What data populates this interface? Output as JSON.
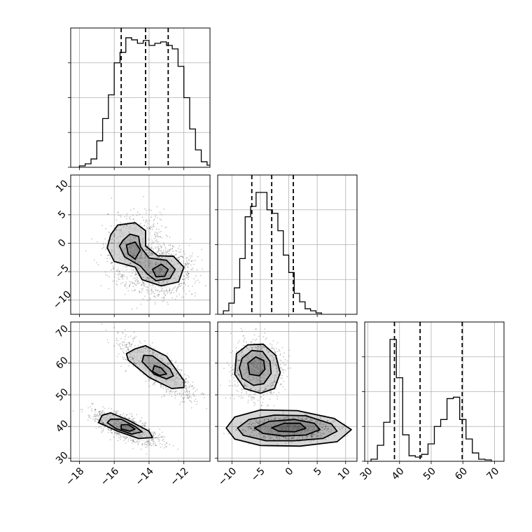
{
  "chart_data": {
    "type": "corner",
    "grid": true,
    "parameters": [
      {
        "xlim": [
          -18.5,
          -10.5
        ],
        "ticks": [
          -18,
          -16,
          -14,
          -12
        ],
        "tick_labels": [
          "−18",
          "−16",
          "−14",
          "−12"
        ],
        "quantiles": [
          -15.6,
          -14.2,
          -12.9
        ]
      },
      {
        "xlim": [
          -12.5,
          12
        ],
        "ticks": [
          -10,
          -5,
          0,
          5,
          10
        ],
        "tick_labels": [
          "−10",
          "−5",
          "0",
          "5",
          "10"
        ],
        "quantiles": [
          -6.5,
          -3.0,
          0.8
        ]
      },
      {
        "xlim": [
          29,
          73
        ],
        "ticks": [
          30,
          40,
          50,
          60,
          70
        ],
        "tick_labels": [
          "30",
          "40",
          "50",
          "60",
          "70"
        ],
        "quantiles": [
          38.4,
          46.5,
          59.8
        ]
      }
    ],
    "histograms": [
      {
        "param": 0,
        "bin_start": -18.0,
        "bin_width": 0.3333,
        "counts": [
          2,
          5,
          12,
          38,
          70,
          104,
          150,
          165,
          186,
          183,
          178,
          182,
          175,
          178,
          180,
          175,
          170,
          145,
          100,
          55,
          25,
          8,
          3,
          1
        ],
        "ylim": [
          0,
          200
        ]
      },
      {
        "param": 1,
        "bin_start": -11.5,
        "bin_width": 0.9583,
        "counts": [
          5,
          16,
          38,
          80,
          140,
          155,
          175,
          175,
          150,
          145,
          120,
          85,
          60,
          30,
          18,
          8,
          5,
          2
        ],
        "ylim": [
          0,
          200
        ]
      },
      {
        "param": 2,
        "bin_start": 31,
        "bin_width": 2,
        "counts": [
          3,
          23,
          56,
          175,
          120,
          38,
          8,
          6,
          10,
          25,
          50,
          60,
          90,
          92,
          60,
          32,
          12,
          3,
          2
        ],
        "ylim": [
          0,
          200
        ]
      }
    ],
    "scatter_panels": [
      {
        "x_param": 0,
        "y_param": 1,
        "clusters": [
          {
            "center": [
              -14.8,
              -1.5
            ],
            "spread": [
              0.8,
              3.0
            ],
            "weight": 0.5
          },
          {
            "center": [
              -13.3,
              -5.0
            ],
            "spread": [
              0.8,
              2.0
            ],
            "weight": 0.5
          }
        ],
        "contours": [
          [
            [
              -16.2,
              1.5
            ],
            [
              -15.8,
              3.2
            ],
            [
              -14.8,
              3.6
            ],
            [
              -14.2,
              2.2
            ],
            [
              -14.2,
              -0.5
            ],
            [
              -13.5,
              -2.2
            ],
            [
              -12.6,
              -2.3
            ],
            [
              -12.0,
              -4.2
            ],
            [
              -12.3,
              -6.8
            ],
            [
              -13.3,
              -7.5
            ],
            [
              -14.4,
              -6.4
            ],
            [
              -14.8,
              -4.2
            ],
            [
              -16.0,
              -3.2
            ],
            [
              -16.4,
              -0.8
            ]
          ],
          [
            [
              -15.5,
              0.5
            ],
            [
              -15.1,
              1.6
            ],
            [
              -14.6,
              1.2
            ],
            [
              -14.5,
              -0.6
            ],
            [
              -14.0,
              -2.6
            ],
            [
              -13.0,
              -3.0
            ],
            [
              -12.5,
              -4.6
            ],
            [
              -12.8,
              -6.2
            ],
            [
              -13.6,
              -6.6
            ],
            [
              -14.1,
              -5.4
            ],
            [
              -14.5,
              -4.0
            ],
            [
              -15.4,
              -2.4
            ],
            [
              -15.7,
              -0.5
            ]
          ],
          [
            [
              -15.3,
              -0.3
            ],
            [
              -14.8,
              0.2
            ],
            [
              -14.5,
              -1.2
            ],
            [
              -14.8,
              -2.8
            ],
            [
              -15.2,
              -1.9
            ]
          ],
          [
            [
              -13.8,
              -4.6
            ],
            [
              -13.3,
              -3.7
            ],
            [
              -12.9,
              -4.6
            ],
            [
              -13.1,
              -5.8
            ],
            [
              -13.6,
              -5.9
            ]
          ]
        ]
      },
      {
        "x_param": 0,
        "y_param": 2,
        "clusters": [
          {
            "center": [
              -13.5,
              58
            ],
            "spread": [
              1.0,
              4.5
            ],
            "corr": -0.85,
            "weight": 0.5
          },
          {
            "center": [
              -15.3,
              39.5
            ],
            "spread": [
              0.9,
              2.6
            ],
            "corr": -0.75,
            "weight": 0.5
          }
        ],
        "contours": [
          [
            [
              -14.8,
              64.5
            ],
            [
              -14.2,
              65.5
            ],
            [
              -13.0,
              62.2
            ],
            [
              -12.0,
              54.5
            ],
            [
              -12.0,
              52.3
            ],
            [
              -12.7,
              52.0
            ],
            [
              -14.0,
              55.5
            ],
            [
              -15.2,
              61.0
            ],
            [
              -15.3,
              63.0
            ]
          ],
          [
            [
              -14.3,
              62.5
            ],
            [
              -13.8,
              62.3
            ],
            [
              -12.8,
              58.2
            ],
            [
              -12.6,
              56.0
            ],
            [
              -13.0,
              55.0
            ],
            [
              -13.7,
              56.5
            ],
            [
              -14.4,
              60.5
            ]
          ],
          [
            [
              -13.7,
              59.2
            ],
            [
              -13.3,
              58.5
            ],
            [
              -13.0,
              56.6
            ],
            [
              -13.4,
              56.1
            ],
            [
              -13.8,
              57.4
            ]
          ],
          [
            [
              -16.7,
              43.5
            ],
            [
              -16.2,
              44.3
            ],
            [
              -15.2,
              42.0
            ],
            [
              -14.0,
              38.5
            ],
            [
              -13.8,
              36.5
            ],
            [
              -14.6,
              36.2
            ],
            [
              -15.8,
              38.5
            ],
            [
              -16.9,
              41.2
            ]
          ],
          [
            [
              -16.2,
              42.3
            ],
            [
              -15.6,
              42.3
            ],
            [
              -14.8,
              40.0
            ],
            [
              -14.4,
              38.3
            ],
            [
              -15.0,
              37.6
            ],
            [
              -15.9,
              39.3
            ],
            [
              -16.4,
              41.2
            ]
          ],
          [
            [
              -15.6,
              40.5
            ],
            [
              -15.2,
              40.6
            ],
            [
              -14.8,
              39.2
            ],
            [
              -15.1,
              38.5
            ],
            [
              -15.6,
              39.2
            ]
          ]
        ]
      },
      {
        "x_param": 1,
        "y_param": 2,
        "clusters": [
          {
            "center": [
              -5.5,
              58
            ],
            "spread": [
              2.0,
              4.0
            ],
            "weight": 0.5
          },
          {
            "center": [
              0.0,
              39.5
            ],
            "spread": [
              3.2,
              1.6
            ],
            "weight": 0.5
          }
        ],
        "contours": [
          [
            [
              -9.2,
              63.0
            ],
            [
              -7.2,
              65.8
            ],
            [
              -4.5,
              66.0
            ],
            [
              -2.3,
              62.5
            ],
            [
              -1.5,
              57.0
            ],
            [
              -2.5,
              52.0
            ],
            [
              -5.0,
              50.5
            ],
            [
              -7.8,
              52.0
            ],
            [
              -9.5,
              56.5
            ]
          ],
          [
            [
              -8.2,
              61.5
            ],
            [
              -6.5,
              64.0
            ],
            [
              -4.6,
              63.7
            ],
            [
              -3.3,
              60.5
            ],
            [
              -3.1,
              56.8
            ],
            [
              -4.4,
              53.5
            ],
            [
              -6.2,
              53.0
            ],
            [
              -8.2,
              55.2
            ],
            [
              -8.7,
              58.5
            ]
          ],
          [
            [
              -7.2,
              60.0
            ],
            [
              -5.8,
              62.0
            ],
            [
              -4.4,
              60.8
            ],
            [
              -4.2,
              58.0
            ],
            [
              -5.2,
              56.0
            ],
            [
              -6.9,
              56.5
            ]
          ],
          [
            [
              -11.0,
              39.5
            ],
            [
              -9.5,
              43.0
            ],
            [
              -5.0,
              45.2
            ],
            [
              1.5,
              45.0
            ],
            [
              8.0,
              42.5
            ],
            [
              11.0,
              39.0
            ],
            [
              8.5,
              35.2
            ],
            [
              2.0,
              33.8
            ],
            [
              -5.0,
              34.0
            ],
            [
              -9.5,
              36.0
            ]
          ],
          [
            [
              -9.0,
              39.5
            ],
            [
              -7.0,
              42.2
            ],
            [
              -2.5,
              43.6
            ],
            [
              3.0,
              43.4
            ],
            [
              7.5,
              40.8
            ],
            [
              8.5,
              38.5
            ],
            [
              6.0,
              36.2
            ],
            [
              1.0,
              35.5
            ],
            [
              -4.0,
              35.5
            ],
            [
              -8.0,
              37.2
            ]
          ],
          [
            [
              -6.0,
              39.5
            ],
            [
              -3.5,
              41.6
            ],
            [
              1.0,
              42.2
            ],
            [
              4.5,
              41.0
            ],
            [
              5.5,
              39.0
            ],
            [
              3.0,
              37.3
            ],
            [
              -1.0,
              37.0
            ],
            [
              -4.5,
              37.8
            ]
          ],
          [
            [
              -3.0,
              39.6
            ],
            [
              -0.8,
              41.0
            ],
            [
              2.0,
              41.0
            ],
            [
              3.0,
              39.4
            ],
            [
              1.0,
              38.3
            ],
            [
              -1.8,
              38.5
            ]
          ]
        ]
      }
    ]
  }
}
